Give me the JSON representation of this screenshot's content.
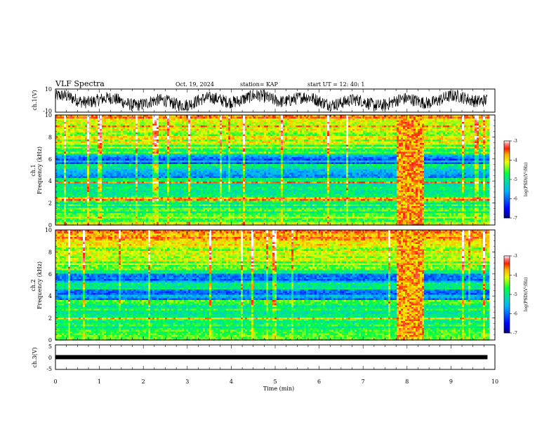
{
  "header": {
    "title": "VLF Spectra",
    "date": "Oct. 19, 2024",
    "station": "station= KAP",
    "start": "start  UT  =   12: 40: 1"
  },
  "chart_data": [
    {
      "type": "line",
      "name": "ch1-waveform",
      "ylabel": "ch.1(V)",
      "ylim": [
        -10,
        10
      ],
      "yticks": [
        "10",
        "-10"
      ],
      "xlim": [
        0,
        10
      ],
      "x_extent": [
        0,
        9.83
      ]
    },
    {
      "type": "heatmap",
      "name": "ch1-spectrogram",
      "ylabel": "ch.1\nFrequency (kHz)",
      "ylim": [
        0,
        10
      ],
      "yticks": [
        "0",
        "2",
        "4",
        "6",
        "8",
        "10"
      ],
      "xlim": [
        0,
        10
      ],
      "x_extent": [
        0,
        9.83
      ],
      "colorbar": {
        "label": "log(PSD)(V²/Hz)",
        "range": [
          -7,
          -3
        ],
        "ticks": [
          "-3",
          "-4",
          "-5",
          "-6",
          "-7"
        ]
      },
      "burst_interval_min": [
        7.75,
        8.35
      ],
      "bands_khz": [
        {
          "from": 4.2,
          "to": 5.0,
          "level": "low"
        },
        {
          "from": 5.6,
          "to": 6.3,
          "level": "low"
        },
        {
          "from": 2.2,
          "to": 2.5,
          "level": "high"
        },
        {
          "from": 3.8,
          "to": 3.9,
          "level": "high"
        }
      ]
    },
    {
      "type": "heatmap",
      "name": "ch2-spectrogram",
      "ylabel": "ch.2\nFrequency (kHz)",
      "ylim": [
        0,
        10
      ],
      "yticks": [
        "0",
        "2",
        "4",
        "6",
        "8",
        "10"
      ],
      "xlim": [
        0,
        10
      ],
      "x_extent": [
        0,
        9.83
      ],
      "colorbar": {
        "label": "log(PSD)(V²/Hz)",
        "range": [
          -7,
          -3
        ],
        "ticks": [
          "-3",
          "-4",
          "-5",
          "-6",
          "-7"
        ]
      },
      "burst_interval_min": [
        7.75,
        8.35
      ],
      "bands_khz": [
        {
          "from": 3.6,
          "to": 4.6,
          "level": "low"
        },
        {
          "from": 5.2,
          "to": 6.0,
          "level": "low"
        },
        {
          "from": 1.9,
          "to": 2.1,
          "level": "high"
        }
      ]
    },
    {
      "type": "line",
      "name": "ch3-signal",
      "ylabel": "ch.3(V)",
      "ylim": [
        -5,
        5
      ],
      "yticks": [
        "5",
        "0",
        "-5"
      ],
      "xlim": [
        0,
        10
      ],
      "x_extent": [
        0,
        9.83
      ],
      "level_v": 0
    }
  ],
  "x_axis": {
    "label": "Time  (min)",
    "ticks": [
      "0",
      "1",
      "2",
      "3",
      "4",
      "5",
      "6",
      "7",
      "8",
      "9",
      "10"
    ]
  }
}
